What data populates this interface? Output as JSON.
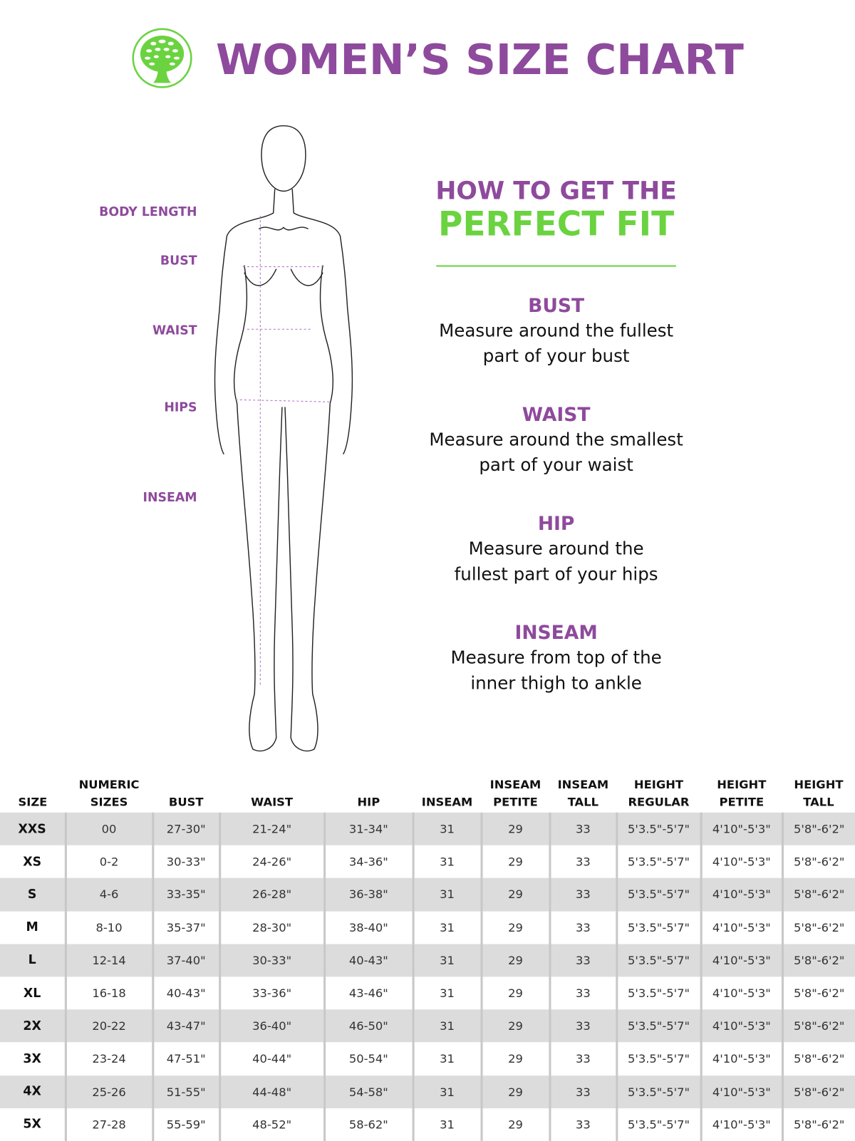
{
  "header": {
    "title": "WOMEN’S SIZE CHART",
    "logo": "tree-logo",
    "brand_color": "#8e4a9c",
    "accent_color": "#6ad33f"
  },
  "figure": {
    "labels": [
      "BODY LENGTH",
      "BUST",
      "WAIST",
      "HIPS",
      "INSEAM"
    ]
  },
  "guide": {
    "title_line1": "HOW TO GET THE",
    "title_line2": "PERFECT FIT",
    "sections": [
      {
        "heading": "BUST",
        "text": "Measure around the fullest part of your bust"
      },
      {
        "heading": "WAIST",
        "text": "Measure around the smallest part of your waist"
      },
      {
        "heading": "HIP",
        "text": "Measure around the fullest part of your hips"
      },
      {
        "heading": "INSEAM",
        "text": "Measure from top of the inner thigh to ankle"
      }
    ]
  },
  "table": {
    "headers": [
      "SIZE",
      "NUMERIC SIZES",
      "BUST",
      "WAIST",
      "HIP",
      "INSEAM",
      "INSEAM PETITE",
      "INSEAM TALL",
      "HEIGHT REGULAR",
      "HEIGHT PETITE",
      "HEIGHT TALL"
    ],
    "rows": [
      [
        "XXS",
        "00",
        "27-30\"",
        "21-24\"",
        "31-34\"",
        "31",
        "29",
        "33",
        "5'3.5\"-5'7\"",
        "4'10\"-5'3\"",
        "5'8\"-6'2\""
      ],
      [
        "XS",
        "0-2",
        "30-33\"",
        "24-26\"",
        "34-36\"",
        "31",
        "29",
        "33",
        "5'3.5\"-5'7\"",
        "4'10\"-5'3\"",
        "5'8\"-6'2\""
      ],
      [
        "S",
        "4-6",
        "33-35\"",
        "26-28\"",
        "36-38\"",
        "31",
        "29",
        "33",
        "5'3.5\"-5'7\"",
        "4'10\"-5'3\"",
        "5'8\"-6'2\""
      ],
      [
        "M",
        "8-10",
        "35-37\"",
        "28-30\"",
        "38-40\"",
        "31",
        "29",
        "33",
        "5'3.5\"-5'7\"",
        "4'10\"-5'3\"",
        "5'8\"-6'2\""
      ],
      [
        "L",
        "12-14",
        "37-40\"",
        "30-33\"",
        "40-43\"",
        "31",
        "29",
        "33",
        "5'3.5\"-5'7\"",
        "4'10\"-5'3\"",
        "5'8\"-6'2\""
      ],
      [
        "XL",
        "16-18",
        "40-43\"",
        "33-36\"",
        "43-46\"",
        "31",
        "29",
        "33",
        "5'3.5\"-5'7\"",
        "4'10\"-5'3\"",
        "5'8\"-6'2\""
      ],
      [
        "2X",
        "20-22",
        "43-47\"",
        "36-40\"",
        "46-50\"",
        "31",
        "29",
        "33",
        "5'3.5\"-5'7\"",
        "4'10\"-5'3\"",
        "5'8\"-6'2\""
      ],
      [
        "3X",
        "23-24",
        "47-51\"",
        "40-44\"",
        "50-54\"",
        "31",
        "29",
        "33",
        "5'3.5\"-5'7\"",
        "4'10\"-5'3\"",
        "5'8\"-6'2\""
      ],
      [
        "4X",
        "25-26",
        "51-55\"",
        "44-48\"",
        "54-58\"",
        "31",
        "29",
        "33",
        "5'3.5\"-5'7\"",
        "4'10\"-5'3\"",
        "5'8\"-6'2\""
      ],
      [
        "5X",
        "27-28",
        "55-59\"",
        "48-52\"",
        "58-62\"",
        "31",
        "29",
        "33",
        "5'3.5\"-5'7\"",
        "4'10\"-5'3\"",
        "5'8\"-6'2\""
      ]
    ]
  }
}
